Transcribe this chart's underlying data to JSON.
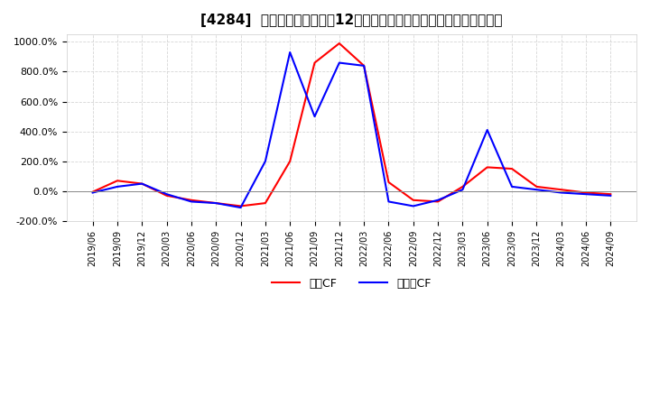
{
  "title": "[4284]  キャッシュフローの12か月移動合計の対前年同期増減率の推移",
  "legend_labels": [
    "営業CF",
    "フリーCF"
  ],
  "line_colors": [
    "#ff0000",
    "#0000ff"
  ],
  "background_color": "#ffffff",
  "plot_bg_color": "#ffffff",
  "grid_color": "#cccccc",
  "ylim": [
    -200,
    1050
  ],
  "yticks": [
    -200,
    0,
    200,
    400,
    600,
    800,
    1000
  ],
  "ytick_labels": [
    "-200.0%",
    "0.0%",
    "200.0%",
    "400.0%",
    "600.0%",
    "800.0%",
    "1000.0%"
  ],
  "dates": [
    "2019/06",
    "2019/09",
    "2019/12",
    "2020/03",
    "2020/06",
    "2020/09",
    "2020/12",
    "2021/03",
    "2021/06",
    "2021/09",
    "2021/12",
    "2022/03",
    "2022/06",
    "2022/09",
    "2022/12",
    "2023/03",
    "2023/06",
    "2023/09",
    "2023/12",
    "2024/03",
    "2024/06",
    "2024/09"
  ],
  "operating_cf": [
    -5,
    70,
    50,
    -30,
    -60,
    -80,
    -100,
    -80,
    200,
    860,
    990,
    840,
    60,
    -60,
    -70,
    30,
    160,
    150,
    30,
    10,
    -10,
    -20
  ],
  "free_cf": [
    -10,
    30,
    50,
    -20,
    -70,
    -80,
    -110,
    200,
    930,
    500,
    860,
    840,
    -70,
    -100,
    -60,
    10,
    410,
    30,
    10,
    -10,
    -20,
    -30
  ]
}
